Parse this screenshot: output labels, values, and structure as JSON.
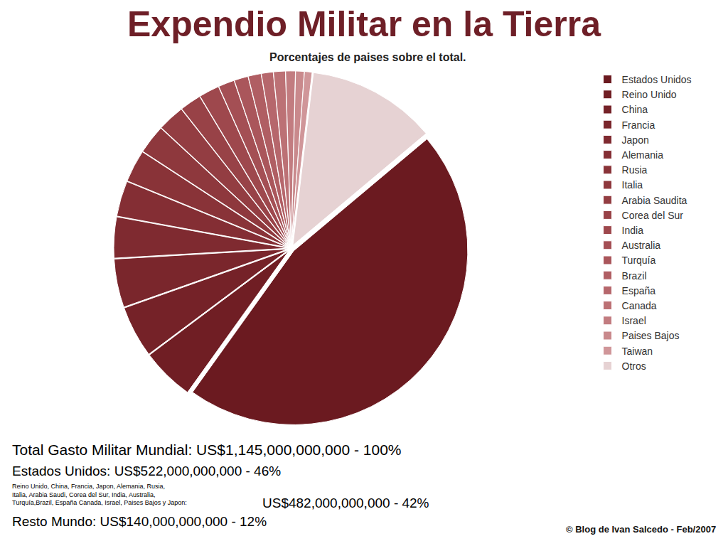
{
  "chart_data": {
    "type": "pie",
    "title": "Expendio Militar en la Tierra",
    "subtitle": "Porcentajes de paises sobre el total.",
    "categories": [
      "Estados Unidos",
      "Reino Unido",
      "China",
      "Francia",
      "Japon",
      "Alemania",
      "Rusia",
      "Italia",
      "Arabia Saudita",
      "Corea del Sur",
      "India",
      "Australia",
      "Turquía",
      "Brazil",
      "España",
      "Canada",
      "Israel",
      "Paises Bajos",
      "Taiwan",
      "Otros"
    ],
    "values": [
      46,
      4.9,
      4.8,
      4.5,
      3.8,
      3.3,
      3.0,
      2.7,
      2.5,
      2.0,
      1.9,
      1.5,
      1.3,
      1.2,
      1.1,
      1.1,
      0.9,
      0.8,
      0.7,
      12
    ],
    "colors": [
      "#6b1a20",
      "#701e24",
      "#752228",
      "#7a262c",
      "#7f2a30",
      "#842e34",
      "#893338",
      "#8e383d",
      "#933d42",
      "#984247",
      "#9e484d",
      "#a44f54",
      "#aa565b",
      "#b05e63",
      "#b6676c",
      "#bc7175",
      "#c27c80",
      "#c9898c",
      "#d09699",
      "#e6d2d3"
    ],
    "data_labels": false,
    "legend": "top right",
    "annotations": [
      "Total Gasto Militar Mundial: US$1,145,000,000,000 - 100%",
      "Estados Unidos: US$522,000,000,000 - 46%",
      "Reino Unido, China, Francia, Japon, Alemania, Rusia,\nItalia, Arabia Saudi, Corea del Sur, India, Australia,\nTurquía,Brazil, España Canada, Israel, Paises Bajos y Japon:",
      "US$482,000,000,000 - 42%",
      "Resto Mundo: US$140,000,000,000 - 12%"
    ],
    "source": "© Blog de Ivan Salcedo - Feb/2007"
  }
}
